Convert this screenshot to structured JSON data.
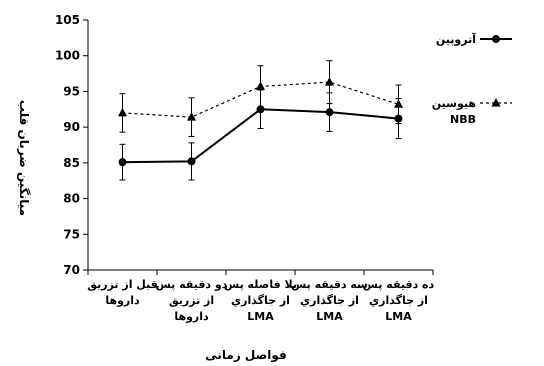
{
  "chart_data": {
    "type": "line",
    "ylabel": "میانگین ضربان قلب",
    "xlabel": "فواصل زمانی",
    "ylim": [
      70,
      105
    ],
    "yticks": [
      70,
      75,
      80,
      85,
      90,
      95,
      100,
      105
    ],
    "grid": false,
    "legend_position": "right",
    "categories": [
      [
        "قبل از تزريق",
        "داروها"
      ],
      [
        "دو دقيقه پس",
        "از تزريق",
        "داروها"
      ],
      [
        "بلا فاصله پس",
        "از جاگذاري",
        "LMA"
      ],
      [
        "سه دقيقه پس",
        "از جاگذاري",
        "LMA"
      ],
      [
        "ده دقيقه پس",
        "از جاگذاري",
        "LMA"
      ]
    ],
    "series": [
      {
        "name": "آتروپین",
        "style": "solid",
        "marker": "circle",
        "values": [
          85.1,
          85.2,
          92.5,
          92.1,
          91.2
        ],
        "errors": [
          2.5,
          2.6,
          2.7,
          2.7,
          2.8
        ]
      },
      {
        "name": [
          "هیوسین",
          "NBB"
        ],
        "style": "dashed",
        "marker": "triangle",
        "values": [
          92.0,
          91.4,
          95.7,
          96.3,
          93.2
        ],
        "errors": [
          2.7,
          2.7,
          2.9,
          3.0,
          2.7
        ]
      }
    ]
  }
}
